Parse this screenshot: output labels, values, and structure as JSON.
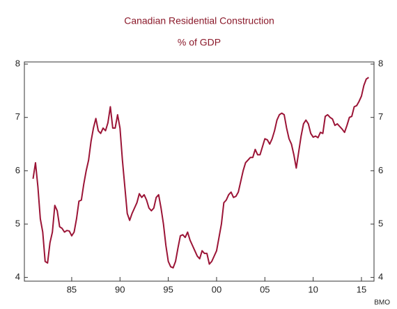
{
  "chart_data": {
    "type": "line",
    "title": "Canadian Residential Construction",
    "subtitle": "% of GDP",
    "source": "BMO",
    "x": [
      1981,
      1981.25,
      1981.5,
      1981.75,
      1982,
      1982.25,
      1982.5,
      1982.75,
      1983,
      1983.25,
      1983.5,
      1983.75,
      1984,
      1984.25,
      1984.5,
      1984.75,
      1985,
      1985.25,
      1985.5,
      1985.75,
      1986,
      1986.25,
      1986.5,
      1986.75,
      1987,
      1987.25,
      1987.5,
      1987.75,
      1988,
      1988.25,
      1988.5,
      1988.75,
      1989,
      1989.25,
      1989.5,
      1989.75,
      1990,
      1990.25,
      1990.5,
      1990.75,
      1991,
      1991.25,
      1991.5,
      1991.75,
      1992,
      1992.25,
      1992.5,
      1992.75,
      1993,
      1993.25,
      1993.5,
      1993.75,
      1994,
      1994.25,
      1994.5,
      1994.75,
      1995,
      1995.25,
      1995.5,
      1995.75,
      1996,
      1996.25,
      1996.5,
      1996.75,
      1997,
      1997.25,
      1997.5,
      1997.75,
      1998,
      1998.25,
      1998.5,
      1998.75,
      1999,
      1999.25,
      1999.5,
      1999.75,
      2000,
      2000.25,
      2000.5,
      2000.75,
      2001,
      2001.25,
      2001.5,
      2001.75,
      2002,
      2002.25,
      2002.5,
      2002.75,
      2003,
      2003.25,
      2003.5,
      2003.75,
      2004,
      2004.25,
      2004.5,
      2004.75,
      2005,
      2005.25,
      2005.5,
      2005.75,
      2006,
      2006.25,
      2006.5,
      2006.75,
      2007,
      2007.25,
      2007.5,
      2007.75,
      2008,
      2008.25,
      2008.5,
      2008.75,
      2009,
      2009.25,
      2009.5,
      2009.75,
      2010,
      2010.25,
      2010.5,
      2010.75,
      2011,
      2011.25,
      2011.5,
      2011.75,
      2012,
      2012.25,
      2012.5,
      2012.75,
      2013,
      2013.25,
      2013.5,
      2013.75,
      2014,
      2014.25,
      2014.5,
      2014.75,
      2015,
      2015.25,
      2015.5,
      2015.75
    ],
    "series": [
      {
        "color": "#9b1436",
        "values": [
          5.85,
          6.15,
          5.7,
          5.1,
          4.85,
          4.3,
          4.27,
          4.65,
          4.85,
          5.35,
          5.25,
          4.95,
          4.92,
          4.85,
          4.88,
          4.87,
          4.78,
          4.85,
          5.1,
          5.43,
          5.45,
          5.75,
          6.0,
          6.2,
          6.55,
          6.8,
          6.98,
          6.75,
          6.7,
          6.8,
          6.75,
          6.9,
          7.2,
          6.8,
          6.8,
          7.05,
          6.8,
          6.2,
          5.7,
          5.2,
          5.07,
          5.2,
          5.3,
          5.4,
          5.57,
          5.5,
          5.55,
          5.45,
          5.3,
          5.25,
          5.3,
          5.5,
          5.55,
          5.3,
          5.0,
          4.6,
          4.3,
          4.2,
          4.18,
          4.3,
          4.55,
          4.78,
          4.8,
          4.75,
          4.85,
          4.7,
          4.6,
          4.5,
          4.4,
          4.35,
          4.5,
          4.45,
          4.45,
          4.25,
          4.3,
          4.4,
          4.5,
          4.75,
          5.0,
          5.4,
          5.45,
          5.55,
          5.6,
          5.5,
          5.52,
          5.6,
          5.8,
          6.0,
          6.15,
          6.2,
          6.25,
          6.25,
          6.4,
          6.3,
          6.3,
          6.45,
          6.6,
          6.58,
          6.5,
          6.6,
          6.75,
          6.95,
          7.05,
          7.08,
          7.05,
          6.8,
          6.6,
          6.5,
          6.3,
          6.05,
          6.35,
          6.65,
          6.88,
          6.95,
          6.88,
          6.7,
          6.63,
          6.65,
          6.62,
          6.72,
          6.7,
          7.02,
          7.05,
          7.0,
          6.97,
          6.85,
          6.88,
          6.83,
          6.78,
          6.72,
          6.85,
          7.0,
          7.02,
          7.2,
          7.22,
          7.3,
          7.4,
          7.6,
          7.72,
          7.75
        ]
      }
    ],
    "xlim": [
      1980.1,
      2016.3
    ],
    "xticks": [
      {
        "value": 1985,
        "label": "85"
      },
      {
        "value": 1990,
        "label": "90"
      },
      {
        "value": 1995,
        "label": "95"
      },
      {
        "value": 2000,
        "label": "00"
      },
      {
        "value": 2005,
        "label": "05"
      },
      {
        "value": 2010,
        "label": "10"
      },
      {
        "value": 2015,
        "label": "15"
      }
    ],
    "ylim": [
      3.93,
      8.04
    ],
    "yticks": [
      4,
      5,
      6,
      7,
      8
    ]
  }
}
